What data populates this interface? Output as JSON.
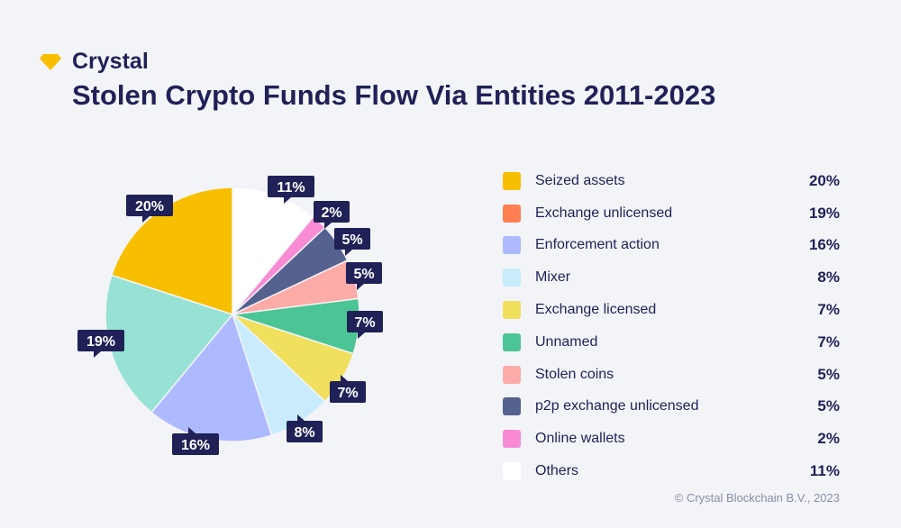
{
  "brand": {
    "name": "Crystal",
    "logo_icon": "diamond-icon",
    "logo_color": "#f8bf00"
  },
  "title": "Stolen Crypto Funds Flow Via Entities 2011-2023",
  "footer": "© Crystal Blockchain B.V., 2023",
  "chart_data": {
    "type": "pie",
    "title": "Stolen Crypto Funds Flow Via Entities 2011-2023",
    "legend_position": "right",
    "start": "top, clockwise",
    "slices": [
      {
        "label": "Others",
        "value": 11,
        "display": "11%",
        "color": "#ffffff"
      },
      {
        "label": "Online wallets",
        "value": 2,
        "display": "2%",
        "color": "#f98bd5"
      },
      {
        "label": "p2p exchange unlicensed",
        "value": 5,
        "display": "5%",
        "color": "#55628f"
      },
      {
        "label": "Stolen coins",
        "value": 5,
        "display": "5%",
        "color": "#fdaba7"
      },
      {
        "label": "Unnamed",
        "value": 7,
        "display": "7%",
        "color": "#4bc595"
      },
      {
        "label": "Exchange licensed",
        "value": 7,
        "display": "7%",
        "color": "#f1e05e"
      },
      {
        "label": "Mixer",
        "value": 8,
        "display": "8%",
        "color": "#c8ecfb"
      },
      {
        "label": "Enforcement action",
        "value": 16,
        "display": "16%",
        "color": "#aebaff"
      },
      {
        "label": "Exchange unlicensed",
        "value": 19,
        "display": "19%",
        "color": "#97e2d4"
      },
      {
        "label": "Seized assets",
        "value": 20,
        "display": "20%",
        "color": "#f8bf00"
      }
    ],
    "legend": [
      {
        "label": "Seized assets",
        "display": "20%",
        "color": "#f8bf00"
      },
      {
        "label": "Exchange unlicensed",
        "display": "19%",
        "color": "#ff7f50"
      },
      {
        "label": "Enforcement action",
        "display": "16%",
        "color": "#aebaff"
      },
      {
        "label": "Mixer",
        "display": "8%",
        "color": "#c8ecfb"
      },
      {
        "label": "Exchange licensed",
        "display": "7%",
        "color": "#f1e05e"
      },
      {
        "label": "Unnamed",
        "display": "7%",
        "color": "#4bc595"
      },
      {
        "label": "Stolen coins",
        "display": "5%",
        "color": "#fdaba7"
      },
      {
        "label": "p2p exchange unlicensed",
        "display": "5%",
        "color": "#55628f"
      },
      {
        "label": "Online wallets",
        "display": "2%",
        "color": "#f98bd5"
      },
      {
        "label": "Others",
        "display": "11%",
        "color": "#ffffff"
      }
    ]
  }
}
